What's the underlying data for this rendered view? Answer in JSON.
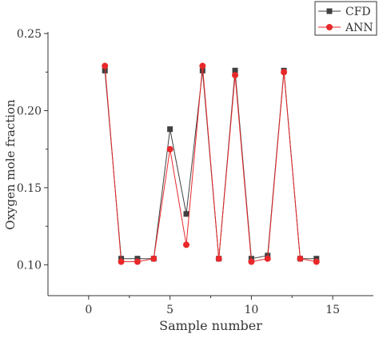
{
  "chart_data": {
    "type": "line",
    "xlabel": "Sample number",
    "ylabel": "Oxygen mole fraction",
    "xlim": [
      -2.5,
      17.5
    ],
    "ylim": [
      0.08,
      0.25
    ],
    "xticks": [
      0,
      5,
      10,
      15
    ],
    "yticks": [
      0.1,
      0.15,
      0.2,
      0.25
    ],
    "xtick_labels": [
      "0",
      "5",
      "10",
      "15"
    ],
    "ytick_labels": [
      "0.10",
      "0.15",
      "0.20",
      "0.25"
    ],
    "grid": false,
    "legend_position": "top-right",
    "x": [
      1,
      2,
      3,
      4,
      5,
      6,
      7,
      8,
      9,
      10,
      11,
      12,
      13,
      14
    ],
    "series": [
      {
        "name": "CFD",
        "marker": "square",
        "color": "#404040",
        "values": [
          0.226,
          0.104,
          0.104,
          0.104,
          0.188,
          0.133,
          0.226,
          0.104,
          0.226,
          0.104,
          0.106,
          0.226,
          0.104,
          0.104
        ]
      },
      {
        "name": "ANN",
        "marker": "circle",
        "color": "#e8282a",
        "values": [
          0.229,
          0.102,
          0.102,
          0.104,
          0.175,
          0.113,
          0.229,
          0.104,
          0.223,
          0.102,
          0.104,
          0.225,
          0.104,
          0.102
        ]
      }
    ]
  }
}
